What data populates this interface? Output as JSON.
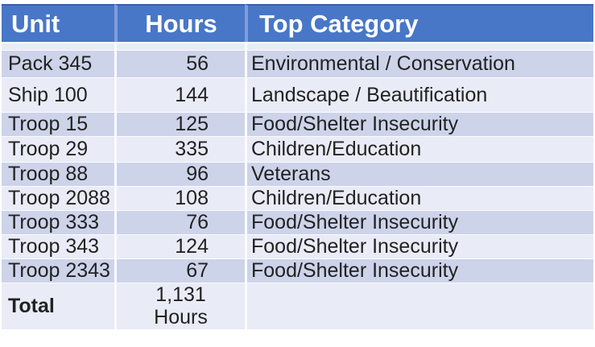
{
  "chart_data": {
    "type": "table",
    "columns": [
      {
        "label": "Unit"
      },
      {
        "label": "Hours"
      },
      {
        "label": "Top Category"
      }
    ],
    "rows": [
      {
        "unit": "Pack 345",
        "hours": "56",
        "category": "Environmental / Conservation"
      },
      {
        "unit": "Ship 100",
        "hours": "144",
        "category": "Landscape / Beautification"
      },
      {
        "unit": "Troop 15",
        "hours": "125",
        "category": "Food/Shelter Insecurity"
      },
      {
        "unit": "Troop 29",
        "hours": "335",
        "category": "Children/Education"
      },
      {
        "unit": "Troop 88",
        "hours": "96",
        "category": "Veterans"
      },
      {
        "unit": "Troop 2088",
        "hours": "108",
        "category": "Children/Education"
      },
      {
        "unit": "Troop 333",
        "hours": "76",
        "category": "Food/Shelter Insecurity"
      },
      {
        "unit": "Troop 343",
        "hours": "124",
        "category": "Food/Shelter Insecurity"
      },
      {
        "unit": "Troop 2343",
        "hours": "67",
        "category": "Food/Shelter Insecurity"
      },
      {
        "unit": "Total",
        "hours": "1,131\nHours",
        "category": "",
        "is_total": true
      }
    ]
  },
  "colors": {
    "header_bg": "#4877C8",
    "header_text": "#FFFFFF",
    "header_top_border": "#3A5FA5",
    "header_divider": "#7F9DDB",
    "band_dark": "#CDD3E9",
    "band_light": "#E9ECF6",
    "divider": "#FAFBFE",
    "text": "#222222",
    "page_bg": "#FFFFFF"
  }
}
